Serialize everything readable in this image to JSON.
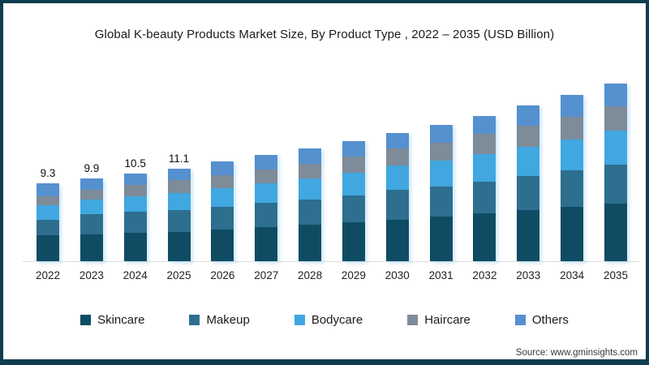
{
  "title": "Global K-beauty Products Market Size, By Product Type , 2022 – 2035 (USD Billion)",
  "source": "Source: www.gminsights.com",
  "colors": {
    "frame_border": "#0f3c51",
    "baseline": "#dcdcdc",
    "skincare": "#0f4c63",
    "makeup": "#2e6e8e",
    "bodycare": "#41a7e0",
    "haircare": "#7e8b99",
    "others": "#5590cf"
  },
  "chart_data": {
    "type": "bar",
    "stacked": true,
    "title": "Global K-beauty Products Market Size, By Product Type , 2022 – 2035 (USD Billion)",
    "xlabel": "",
    "ylabel": "USD Billion",
    "ylim": [
      0,
      22
    ],
    "grid": false,
    "legend_position": "bottom",
    "categories": [
      "2022",
      "2023",
      "2024",
      "2025",
      "2026",
      "2027",
      "2028",
      "2029",
      "2030",
      "2031",
      "2032",
      "2033",
      "2034",
      "2035"
    ],
    "series": [
      {
        "name": "Skincare",
        "color": "#0f4c63",
        "values": [
          3.1,
          3.2,
          3.4,
          3.5,
          3.8,
          4.1,
          4.4,
          4.7,
          5.0,
          5.3,
          5.7,
          6.1,
          6.5,
          6.9
        ]
      },
      {
        "name": "Makeup",
        "color": "#2e6e8e",
        "values": [
          1.9,
          2.4,
          2.5,
          2.6,
          2.7,
          2.9,
          3.0,
          3.2,
          3.5,
          3.6,
          3.8,
          4.1,
          4.4,
          4.7
        ]
      },
      {
        "name": "Bodycare",
        "color": "#41a7e0",
        "values": [
          1.7,
          1.8,
          1.9,
          2.1,
          2.2,
          2.3,
          2.5,
          2.7,
          3.0,
          3.1,
          3.3,
          3.5,
          3.7,
          4.0
        ]
      },
      {
        "name": "Haircare",
        "color": "#7e8b99",
        "values": [
          1.1,
          1.1,
          1.3,
          1.5,
          1.6,
          1.7,
          1.8,
          1.9,
          2.0,
          2.2,
          2.4,
          2.5,
          2.7,
          2.9
        ]
      },
      {
        "name": "Others",
        "color": "#5590cf",
        "values": [
          1.5,
          1.4,
          1.4,
          1.4,
          1.6,
          1.7,
          1.8,
          1.9,
          1.8,
          2.1,
          2.2,
          2.4,
          2.6,
          2.8
        ]
      }
    ],
    "totals": [
      9.3,
      9.9,
      10.5,
      11.1,
      11.9,
      12.7,
      13.5,
      14.4,
      15.3,
      16.3,
      17.4,
      18.6,
      19.9,
      21.3
    ],
    "bar_value_labels": [
      "9.3",
      "9.9",
      "10.5",
      "11.1",
      null,
      null,
      null,
      null,
      null,
      null,
      null,
      null,
      null,
      null
    ]
  }
}
